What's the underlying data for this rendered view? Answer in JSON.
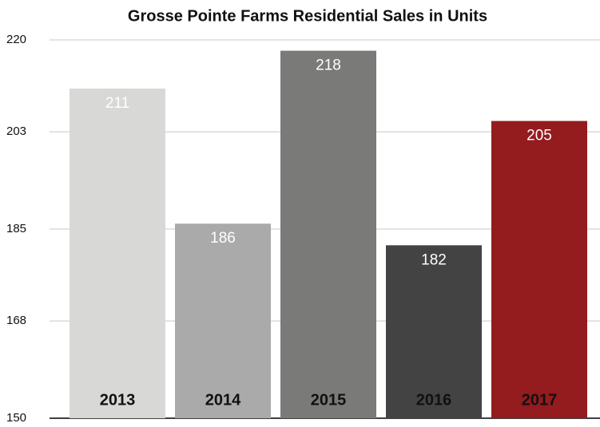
{
  "chart_data": {
    "type": "bar",
    "title": "Grosse Pointe Farms Residential Sales in Units",
    "categories": [
      "2013",
      "2014",
      "2015",
      "2016",
      "2017"
    ],
    "values": [
      211,
      186,
      218,
      182,
      205
    ],
    "colors": [
      "#d8d8d6",
      "#a9aaa9",
      "#7a7a79",
      "#434343",
      "#941b1e"
    ],
    "ylim": [
      150,
      220
    ],
    "yticks": [
      150,
      168,
      185,
      203,
      220
    ],
    "grid": true
  }
}
